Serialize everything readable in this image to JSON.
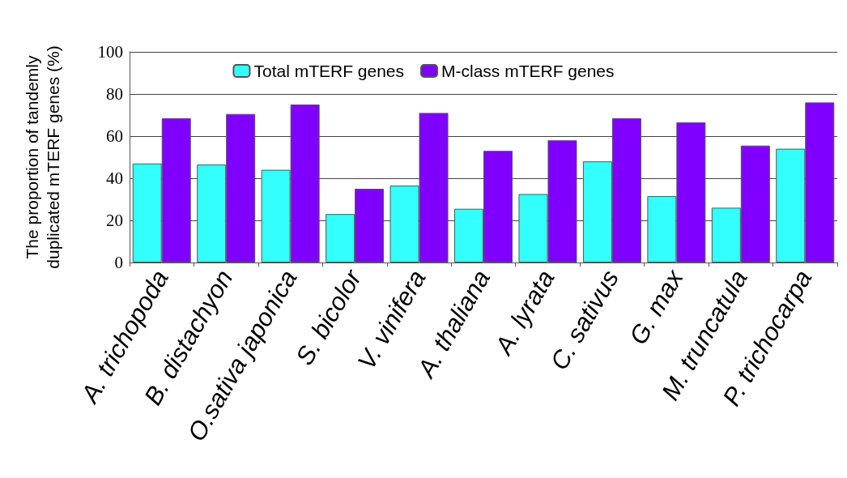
{
  "chart_data": {
    "type": "bar",
    "ylabel": "The proportion of tandemly\nduplicated mTERF genes (%)",
    "categories": [
      "A. trichopoda",
      "B. distachyon",
      "O.sativa japonica",
      "S. bicolor",
      "V. vinifera",
      "A. thaliana",
      "A. lyrata",
      "C. sativus",
      "G. max",
      "M. truncatula",
      "P. trichocarpa"
    ],
    "series": [
      {
        "name": "Total mTERF genes",
        "color": "#33ffff",
        "values": [
          47,
          46.5,
          44,
          23,
          36.5,
          25.5,
          32.5,
          48,
          31.5,
          26,
          54
        ]
      },
      {
        "name": "M-class mTERF genes",
        "color": "#8000ff",
        "values": [
          68.5,
          70.5,
          75,
          35,
          71,
          53,
          58,
          68.5,
          66.5,
          55.5,
          76
        ]
      }
    ],
    "ylim": [
      0,
      100
    ],
    "yticks": [
      0,
      20,
      40,
      60,
      80,
      100
    ],
    "grid": "y",
    "legend": "top"
  }
}
